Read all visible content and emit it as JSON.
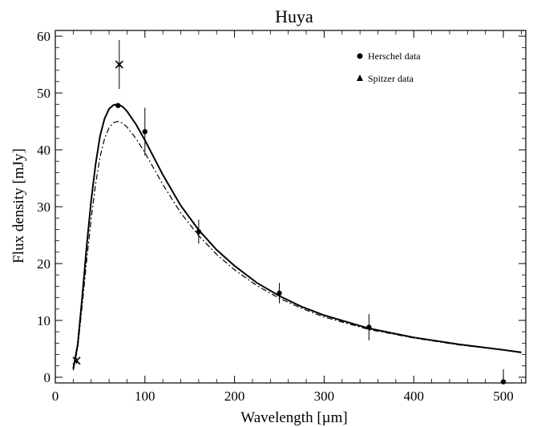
{
  "chart_data": {
    "type": "scatter",
    "title": "Huya",
    "xlabel": "Wavelength [µm]",
    "ylabel": "Flux density [mJy]",
    "xlim": [
      0,
      525
    ],
    "ylim": [
      -1,
      61
    ],
    "xticks": [
      0,
      100,
      200,
      300,
      400,
      500
    ],
    "yticks": [
      0,
      10,
      20,
      30,
      40,
      50,
      60
    ],
    "legend_position": "top-right",
    "legend": [
      {
        "name": "Herschel data",
        "marker": "circle"
      },
      {
        "name": "Spitzer data",
        "marker": "triangle"
      }
    ],
    "series": [
      {
        "name": "Herschel data",
        "marker": "circle",
        "points": [
          {
            "x": 70,
            "y": 47.8,
            "err": 0.4
          },
          {
            "x": 100,
            "y": 43.2,
            "err": 4.2
          },
          {
            "x": 160,
            "y": 25.6,
            "err": 2.1
          },
          {
            "x": 250,
            "y": 14.8,
            "err": 1.8
          },
          {
            "x": 350,
            "y": 8.8,
            "err": 2.3
          },
          {
            "x": 500,
            "y": -0.8,
            "err": 2.2
          }
        ]
      },
      {
        "name": "Spitzer data",
        "marker": "triangle",
        "points": [
          {
            "x": 23.7,
            "y": 2.9,
            "err": 0.5
          },
          {
            "x": 71.4,
            "y": 55.0,
            "err": 4.3
          }
        ]
      },
      {
        "name": "",
        "style": "solid",
        "x": [
          20,
          25,
          30,
          35,
          40,
          45,
          50,
          55,
          60,
          65,
          70,
          75,
          80,
          90,
          100,
          120,
          140,
          160,
          180,
          200,
          225,
          250,
          275,
          300,
          350,
          400,
          450,
          500,
          520
        ],
        "y": [
          1.5,
          5.8,
          14.0,
          23.0,
          31.0,
          37.5,
          42.5,
          45.5,
          47.2,
          47.9,
          48.0,
          47.6,
          46.8,
          44.5,
          41.7,
          35.6,
          30.2,
          25.9,
          22.4,
          19.6,
          16.6,
          14.3,
          12.4,
          10.9,
          8.6,
          7.0,
          5.8,
          4.8,
          4.4
        ]
      },
      {
        "name": "",
        "style": "dash-dot",
        "x": [
          20,
          25,
          30,
          35,
          40,
          45,
          50,
          55,
          60,
          65,
          70,
          75,
          80,
          90,
          100,
          120,
          140,
          160,
          180,
          200,
          225,
          250,
          275,
          300,
          350,
          400,
          450,
          500,
          520
        ],
        "y": [
          1.2,
          5.2,
          12.5,
          20.5,
          27.8,
          34.0,
          38.8,
          42.0,
          43.9,
          44.8,
          45.0,
          44.7,
          44.0,
          42.0,
          39.5,
          33.9,
          28.9,
          24.9,
          21.6,
          18.9,
          16.1,
          13.9,
          12.1,
          10.6,
          8.4,
          6.9,
          5.7,
          4.8,
          4.3
        ]
      }
    ]
  }
}
